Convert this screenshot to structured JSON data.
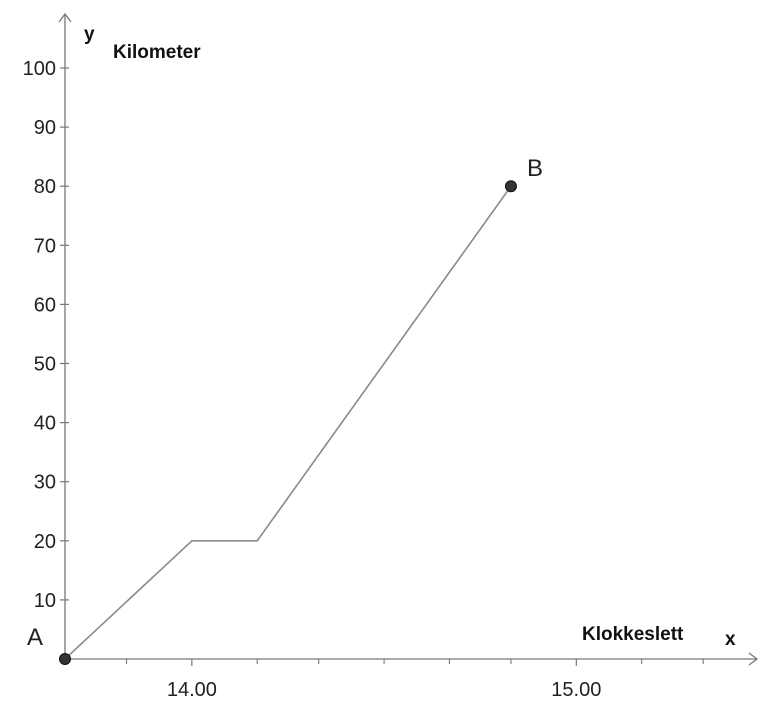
{
  "chart_data": {
    "type": "line",
    "xlabel": "Klokkeslett",
    "ylabel": "Kilometer",
    "x_axis_letter": "x",
    "y_axis_letter": "y",
    "x_unit": "hours",
    "xlim": [
      13.67,
      15.47
    ],
    "ylim": [
      0,
      105
    ],
    "x_ticks": [
      {
        "value": 14.0,
        "label": "14.00"
      },
      {
        "value": 15.0,
        "label": "15.00"
      }
    ],
    "x_minor_ticks": [
      13.67,
      13.83,
      14.17,
      14.33,
      14.5,
      14.67,
      14.83,
      15.17,
      15.33
    ],
    "y_ticks": [
      10,
      20,
      30,
      40,
      50,
      60,
      70,
      80,
      90,
      100
    ],
    "grid": false,
    "series": [
      {
        "points": [
          {
            "x": 13.67,
            "y": 0
          },
          {
            "x": 14.0,
            "y": 20
          },
          {
            "x": 14.17,
            "y": 20
          },
          {
            "x": 14.83,
            "y": 80
          }
        ]
      }
    ],
    "annotations": [
      {
        "label": "A",
        "x": 13.67,
        "y": 0
      },
      {
        "label": "B",
        "x": 14.83,
        "y": 80
      }
    ],
    "colors": {
      "line": "#8a8a8a",
      "axis": "#777777",
      "point": "#333333"
    }
  }
}
